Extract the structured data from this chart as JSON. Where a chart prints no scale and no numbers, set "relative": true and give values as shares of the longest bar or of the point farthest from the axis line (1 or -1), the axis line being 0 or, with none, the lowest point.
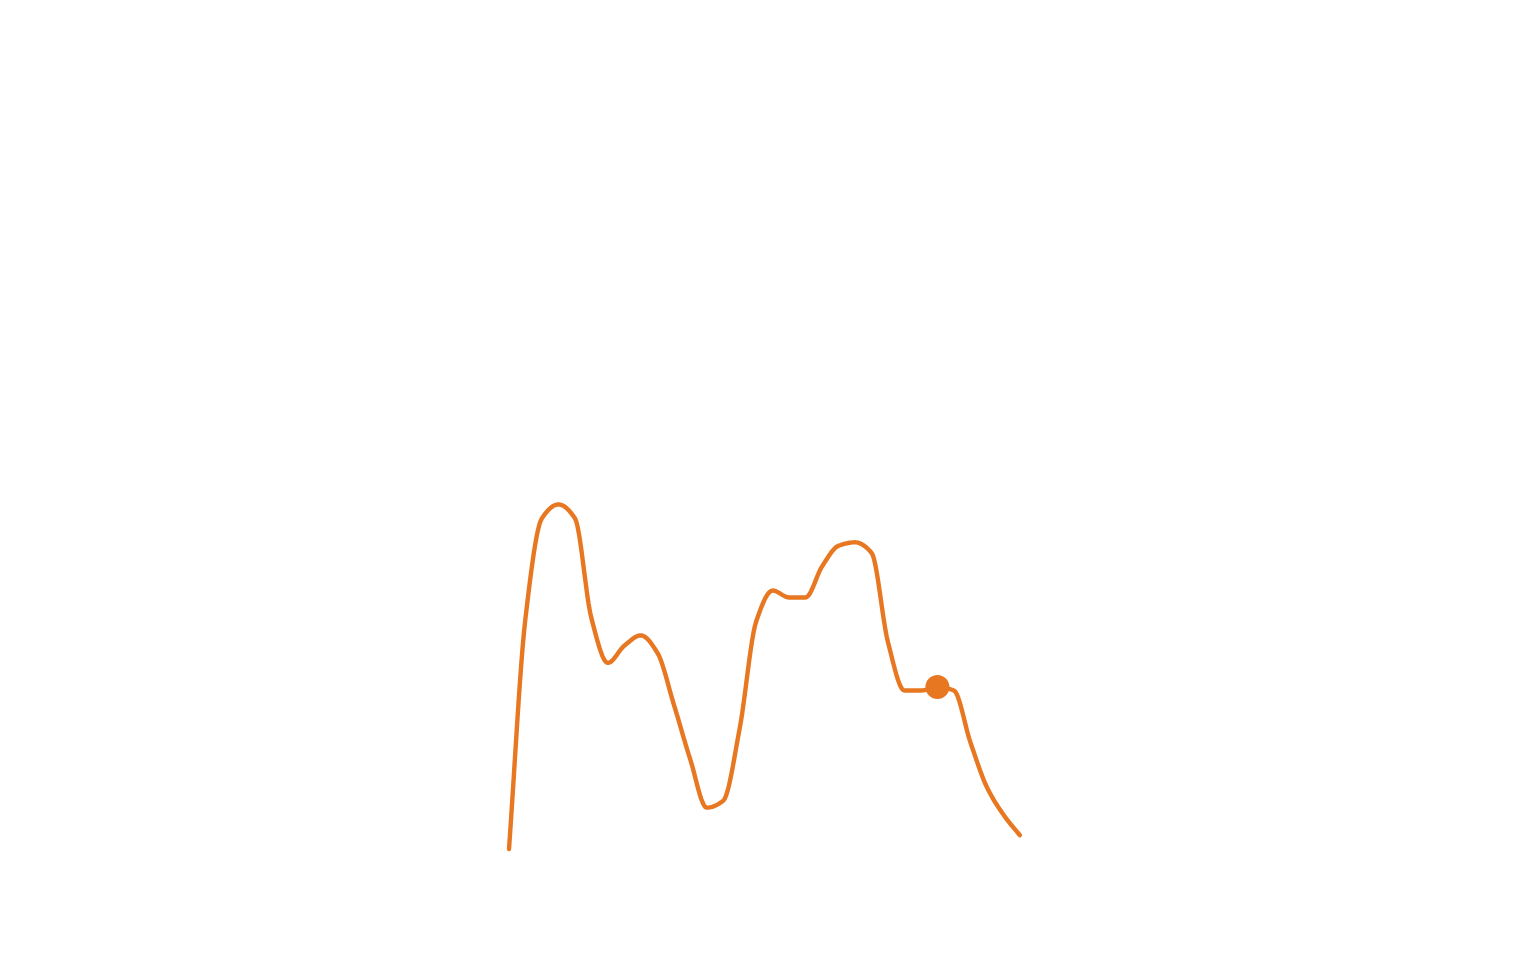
{
  "chart_data": {
    "type": "line",
    "relative": true,
    "categories": [
      null,
      null,
      null,
      null,
      null,
      null,
      null,
      null,
      null,
      null,
      null,
      null,
      null,
      null,
      null,
      null,
      null,
      null,
      null,
      null,
      null,
      null,
      null,
      null,
      null,
      null,
      null,
      null,
      null,
      null,
      null,
      null
    ],
    "series": [
      {
        "color": "#e87722",
        "line_style": "solid",
        "values": [
          0,
          0.67,
          0.96,
          1,
          0.96,
          0.67,
          0.54,
          0.59,
          0.62,
          0.57,
          0.42,
          0.26,
          0.12,
          0.14,
          0.35,
          0.66,
          0.75,
          0.73,
          0.73,
          0.82,
          0.88,
          0.89,
          0.86,
          0.6,
          0.46,
          0.46,
          0.47,
          0.46,
          0.31,
          0.18,
          0.1,
          0.04
        ]
      },
      {
        "color": "#e87722",
        "marker": "circle",
        "values": [
          null,
          null,
          null,
          null,
          null,
          null,
          null,
          null,
          null,
          null,
          null,
          null,
          null,
          null,
          null,
          null,
          null,
          null,
          null,
          null,
          null,
          null,
          null,
          null,
          null,
          null,
          0.47,
          null,
          null,
          null,
          null,
          null
        ]
      }
    ]
  }
}
